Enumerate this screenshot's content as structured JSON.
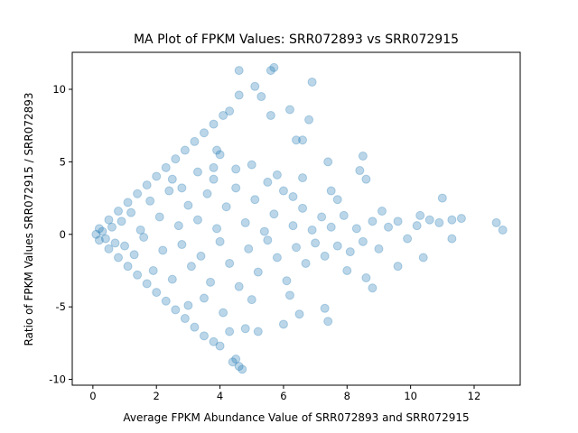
{
  "chart_data": {
    "type": "scatter",
    "title": "MA Plot of FPKM Values: SRR072893 vs SRR072915",
    "x_label": "Average FPKM Abundance Value of SRR072893 and SRR072915",
    "y_label": "Ratio of FPKM Values SRR072915 / SRR072893",
    "color": "#1f77b4",
    "xlim": [
      -0.65,
      13.45
    ],
    "ylim": [
      -10.4,
      12.55
    ],
    "xticks": [
      0,
      2,
      4,
      6,
      8,
      10,
      12
    ],
    "yticks": [
      -10,
      -5,
      0,
      5,
      10
    ],
    "grid": false,
    "x": [
      0.2,
      0.5,
      0.8,
      1.1,
      1.4,
      1.7,
      2,
      2.3,
      2.6,
      2.9,
      3.2,
      3.5,
      3.8,
      4.1,
      4.3,
      0.2,
      0.5,
      0.8,
      1.1,
      1.4,
      1.7,
      2,
      2.3,
      2.6,
      2.9,
      3.2,
      3.5,
      3.8,
      4.0,
      4.6,
      5.6,
      5.7,
      5.1,
      6.9,
      4.6,
      5.3,
      5.6,
      6.2,
      6.4,
      6.6,
      6.8,
      4.5,
      4.6,
      4.7,
      4.4,
      4.3,
      4.8,
      5.2,
      6,
      6.5,
      7.3,
      7.4,
      8.6,
      8.8,
      9.6,
      10.4,
      11.3,
      12.7,
      12.9,
      11.6,
      11,
      8.5,
      8.4,
      8.6,
      9.1,
      10.3,
      7.4,
      6.6,
      7.7,
      3.9,
      4,
      3.8,
      5,
      4.5,
      3.3,
      2.8,
      5.8,
      6.3,
      0.1,
      0.3,
      0.4,
      0.6,
      0.7,
      0.9,
      1,
      1.2,
      1.3,
      1.5,
      1.6,
      1.8,
      1.9,
      2.1,
      2.2,
      2.4,
      2.5,
      2.7,
      2.8,
      3,
      3.1,
      3.3,
      3.4,
      3.6,
      3.7,
      3.9,
      4,
      4.2,
      4.3,
      4.5,
      4.6,
      4.8,
      4.9,
      5.1,
      5.2,
      5.4,
      5.5,
      5.7,
      5.8,
      6,
      6.1,
      6.3,
      6.4,
      6.6,
      6.7,
      6.9,
      7,
      7.2,
      7.3,
      7.5,
      7.7,
      7.9,
      8.1,
      8.3,
      8.5,
      8.8,
      9,
      9.3,
      9.6,
      9.9,
      10.2,
      10.6,
      10.9,
      11.3,
      3.5,
      3,
      2.5,
      5,
      5.5,
      4.1,
      3.8,
      7.5,
      8,
      6.2
    ],
    "values": [
      0.4,
      1,
      1.6,
      2.2,
      2.8,
      3.4,
      4,
      4.6,
      5.2,
      5.8,
      6.4,
      7,
      7.6,
      8.2,
      8.5,
      -0.4,
      -1,
      -1.6,
      -2.2,
      -2.8,
      -3.4,
      -4,
      -4.6,
      -5.2,
      -5.8,
      -6.4,
      -7,
      -7.4,
      -7.7,
      11.3,
      11.3,
      11.5,
      10.2,
      10.5,
      9.6,
      9.5,
      8.2,
      8.6,
      6.5,
      6.5,
      7.9,
      -8.6,
      -9.1,
      -9.3,
      -8.8,
      -6.7,
      -6.5,
      -6.7,
      -6.2,
      -5.5,
      -5.1,
      -6,
      -3,
      -3.7,
      -2.2,
      -1.6,
      -0.3,
      0.8,
      0.3,
      1.1,
      2.5,
      5.4,
      4.4,
      3.8,
      1.6,
      1.3,
      5,
      3.9,
      2.4,
      5.8,
      5.5,
      4.6,
      4.8,
      4.5,
      4.3,
      3.2,
      4.1,
      2.6,
      0,
      0.2,
      -0.3,
      0.5,
      -0.6,
      0.9,
      -0.8,
      1.5,
      -1.4,
      0.3,
      -0.2,
      2.3,
      -2.5,
      1.2,
      -1.1,
      3,
      -3.1,
      0.6,
      -0.7,
      2,
      -2.2,
      1,
      -1.5,
      2.8,
      -3.3,
      0.4,
      -0.5,
      1.9,
      -2,
      3.2,
      -3.6,
      0.8,
      -1,
      2.4,
      -2.6,
      0.2,
      -0.4,
      1.4,
      -1.6,
      3,
      -3.2,
      0.6,
      -0.9,
      1.8,
      -2,
      0.3,
      -0.6,
      1.2,
      -1.5,
      0.5,
      -0.8,
      1.3,
      -1.2,
      0.4,
      -0.5,
      0.9,
      -1,
      0.5,
      0.9,
      -0.3,
      0.6,
      1,
      0.8,
      1,
      -4.4,
      -4.9,
      3.8,
      -4.5,
      3.6,
      -5.4,
      3.8,
      3,
      -2.5,
      -4.2
    ]
  }
}
